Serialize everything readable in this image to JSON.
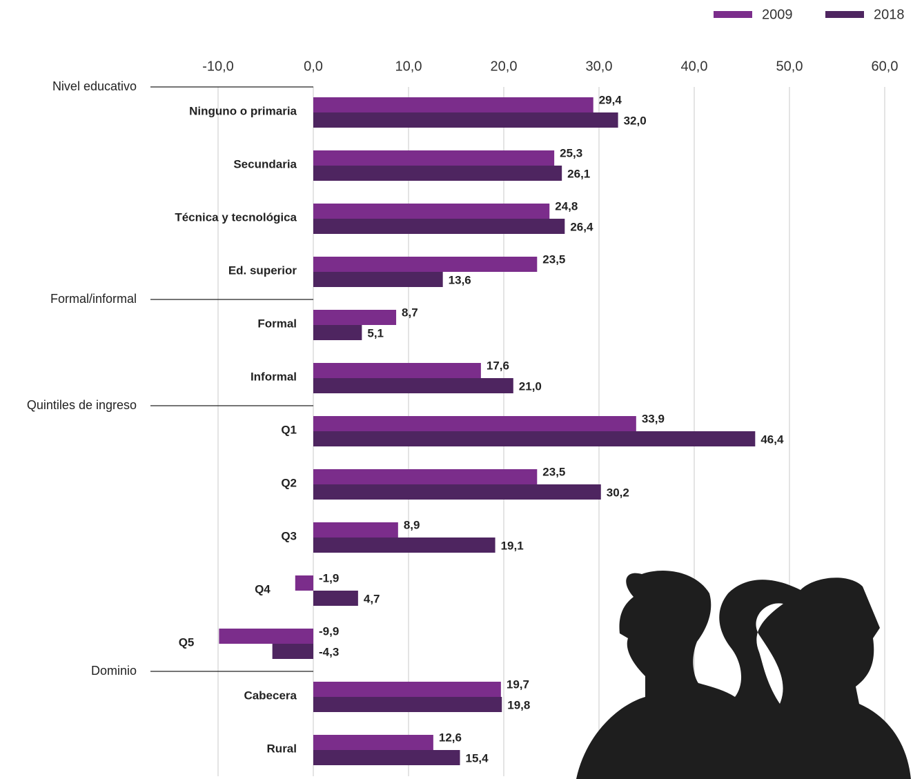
{
  "chart_data": {
    "type": "bar",
    "orientation": "horizontal",
    "groups": [
      {
        "name": "Nivel educativo",
        "categories": [
          "Ninguno o primaria",
          "Secundaria",
          "Técnica y tecnológica",
          "Ed. superior"
        ]
      },
      {
        "name": "Formal/informal",
        "categories": [
          "Formal",
          "Informal"
        ]
      },
      {
        "name": "Quintiles de ingreso",
        "categories": [
          "Q1",
          "Q2",
          "Q3",
          "Q4",
          "Q5"
        ]
      },
      {
        "name": "Dominio",
        "categories": [
          "Cabecera",
          "Rural"
        ]
      }
    ],
    "series": [
      {
        "name": "2009",
        "color": "#7b2d8b",
        "values": [
          29.4,
          25.3,
          24.8,
          23.5,
          8.7,
          17.6,
          33.9,
          23.5,
          8.9,
          -1.9,
          -9.9,
          19.7,
          12.6
        ],
        "value_labels": [
          "29,4",
          "25,3",
          "24,8",
          "23,5",
          "8,7",
          "17,6",
          "33,9",
          "23,5",
          "8,9",
          "-1,9",
          "-9,9",
          "19,7",
          "12,6"
        ]
      },
      {
        "name": "2018",
        "color": "#4e2560",
        "values": [
          32.0,
          26.1,
          26.4,
          13.6,
          5.1,
          21.0,
          46.4,
          30.2,
          19.1,
          4.7,
          -4.3,
          19.8,
          15.4
        ],
        "value_labels": [
          "32,0",
          "26,1",
          "26,4",
          "13,6",
          "5,1",
          "21,0",
          "46,4",
          "30,2",
          "19,1",
          "4,7",
          "-4,3",
          "19,8",
          "15,4"
        ]
      }
    ],
    "xlim": [
      -10,
      60
    ],
    "xticks": [
      {
        "value": -10,
        "label": "-10,0"
      },
      {
        "value": 0,
        "label": "0,0"
      },
      {
        "value": 10,
        "label": "10,0"
      },
      {
        "value": 20,
        "label": "20,0"
      },
      {
        "value": 30,
        "label": "30,0"
      },
      {
        "value": 40,
        "label": "40,0"
      },
      {
        "value": 50,
        "label": "50,0"
      },
      {
        "value": 60,
        "label": "60,0"
      }
    ],
    "grid": true,
    "legend": "top-right"
  }
}
